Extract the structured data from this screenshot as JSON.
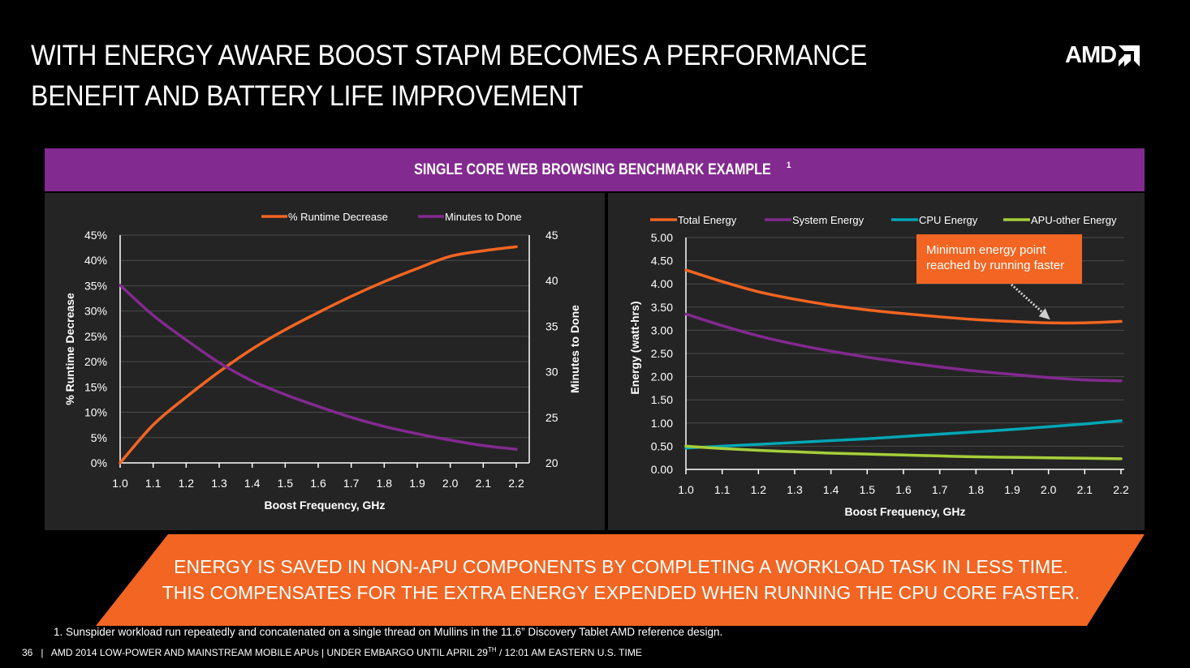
{
  "header": {
    "title_line1": "WITH ENERGY AWARE BOOST STAPM BECOMES A PERFORMANCE",
    "title_line2": "BENEFIT AND BATTERY LIFE IMPROVEMENT",
    "logo_text": "AMD"
  },
  "banner": {
    "text": "SINGLE CORE WEB BROWSING BENCHMARK EXAMPLE",
    "superscript": "1"
  },
  "colors": {
    "orange": "#f26522",
    "purple": "#822a8f",
    "teal": "#00a6b5",
    "lime": "#a6ce39",
    "panel_bg": "#242424",
    "grid": "#4a4a4a"
  },
  "chart_data": [
    {
      "type": "line",
      "title": "",
      "x": [
        1.0,
        1.1,
        1.2,
        1.3,
        1.4,
        1.5,
        1.6,
        1.7,
        1.8,
        1.9,
        2.0,
        2.1,
        2.2
      ],
      "x_ticks": [
        "1.0",
        "1.1",
        "1.2",
        "1.3",
        "1.4",
        "1.5",
        "1.6",
        "1.7",
        "1.8",
        "1.9",
        "2.0",
        "2.1",
        "2.2"
      ],
      "xlabel": "Boost Frequency, GHz",
      "ylabel": "% Runtime Decrease",
      "ylim": [
        0,
        45
      ],
      "y_ticks": [
        "0%",
        "5%",
        "10%",
        "15%",
        "20%",
        "25%",
        "30%",
        "35%",
        "40%",
        "45%"
      ],
      "y2label": "Minutes to Done",
      "y2lim": [
        20,
        45
      ],
      "y2_ticks": [
        "20",
        "25",
        "30",
        "35",
        "40",
        "45"
      ],
      "grid": true,
      "legend": "top-right",
      "series": [
        {
          "name": "% Runtime Decrease",
          "axis": "left",
          "color": "#f26522",
          "values": [
            0,
            7.5,
            13.0,
            18.0,
            22.5,
            26.3,
            29.7,
            32.9,
            35.8,
            38.4,
            40.8,
            41.9,
            42.7
          ]
        },
        {
          "name": "Minutes to Done",
          "axis": "right",
          "color": "#822a8f",
          "values": [
            39.5,
            36.2,
            33.5,
            31.0,
            29.0,
            27.5,
            26.2,
            25.0,
            24.0,
            23.2,
            22.5,
            21.9,
            21.5
          ]
        }
      ]
    },
    {
      "type": "line",
      "title": "",
      "x": [
        1.0,
        1.1,
        1.2,
        1.3,
        1.4,
        1.5,
        1.6,
        1.7,
        1.8,
        1.9,
        2.0,
        2.1,
        2.2
      ],
      "x_ticks": [
        "1.0",
        "1.1",
        "1.2",
        "1.3",
        "1.4",
        "1.5",
        "1.6",
        "1.7",
        "1.8",
        "1.9",
        "2.0",
        "2.1",
        "2.2"
      ],
      "xlabel": "Boost Frequency, GHz",
      "ylabel": "Energy (watt-hrs)",
      "ylim": [
        0,
        5
      ],
      "y_ticks": [
        "0.00",
        "0.50",
        "1.00",
        "1.50",
        "2.00",
        "2.50",
        "3.00",
        "3.50",
        "4.00",
        "4.50",
        "5.00"
      ],
      "grid": true,
      "legend": "top",
      "series": [
        {
          "name": "Total Energy",
          "color": "#f26522",
          "values": [
            4.3,
            4.05,
            3.83,
            3.67,
            3.54,
            3.44,
            3.36,
            3.29,
            3.23,
            3.19,
            3.16,
            3.16,
            3.19
          ]
        },
        {
          "name": "System Energy",
          "color": "#822a8f",
          "values": [
            3.35,
            3.1,
            2.88,
            2.7,
            2.55,
            2.42,
            2.31,
            2.21,
            2.12,
            2.05,
            1.98,
            1.93,
            1.91
          ]
        },
        {
          "name": "CPU Energy",
          "color": "#00a6b5",
          "values": [
            0.46,
            0.5,
            0.54,
            0.58,
            0.62,
            0.66,
            0.71,
            0.76,
            0.81,
            0.86,
            0.92,
            0.98,
            1.05
          ]
        },
        {
          "name": "APU-other Energy",
          "color": "#a6ce39",
          "values": [
            0.5,
            0.45,
            0.41,
            0.38,
            0.35,
            0.33,
            0.31,
            0.29,
            0.27,
            0.26,
            0.25,
            0.24,
            0.23
          ]
        }
      ],
      "annotation": {
        "text_line1": "Minimum energy point",
        "text_line2": "reached by running faster",
        "points_to_x": 2.0
      }
    }
  ],
  "conclusion": {
    "line1": "ENERGY IS SAVED IN NON-APU COMPONENTS BY COMPLETING A WORKLOAD TASK IN LESS TIME.",
    "line2": "THIS COMPENSATES FOR THE EXTRA ENERGY EXPENDED WHEN RUNNING THE CPU CORE FASTER."
  },
  "footnote": "1. Sunspider workload run repeatedly and concatenated on a single thread on Mullins in the 11.6” Discovery Tablet AMD reference design.",
  "footer": {
    "page_number": "36",
    "text_a": "AMD 2014 LOW-POWER AND MAINSTREAM MOBILE APUs",
    "text_b": "UNDER EMBARGO UNTIL APRIL 29",
    "text_b_sup": "TH",
    "text_c": " / 12:01 AM EASTERN U.S. TIME"
  }
}
